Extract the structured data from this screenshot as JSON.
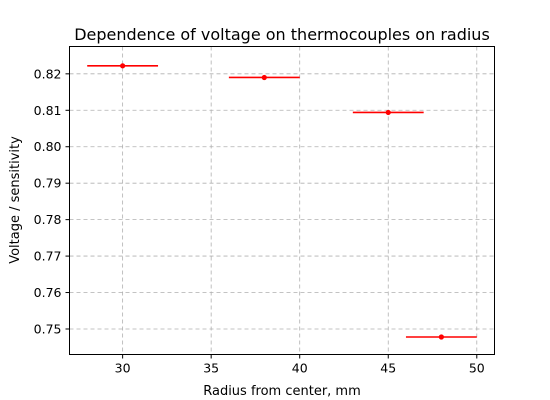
{
  "chart_data": {
    "type": "scatter",
    "title": "Dependence of voltage on thermocouples on radius",
    "xlabel": "Radius from center, mm",
    "ylabel": "Voltage / sensitivity",
    "xlim": [
      27,
      51
    ],
    "ylim": [
      0.743,
      0.8275
    ],
    "x_ticks": [
      30,
      35,
      40,
      45,
      50
    ],
    "y_ticks": [
      0.75,
      0.76,
      0.77,
      0.78,
      0.79,
      0.8,
      0.81,
      0.82
    ],
    "x_tick_labels": [
      "30",
      "35",
      "40",
      "45",
      "50"
    ],
    "y_tick_labels": [
      "0.75",
      "0.76",
      "0.77",
      "0.78",
      "0.79",
      "0.80",
      "0.81",
      "0.82"
    ],
    "grid": true,
    "color": "#ff0000",
    "series": [
      {
        "x": [
          30,
          38,
          45,
          48
        ],
        "y": [
          0.8222,
          0.819,
          0.8094,
          0.7478
        ],
        "xerr": [
          2,
          2,
          2,
          2
        ],
        "yerr": [
          0.0006,
          0.0006,
          0.0006,
          0.0006
        ]
      }
    ]
  }
}
